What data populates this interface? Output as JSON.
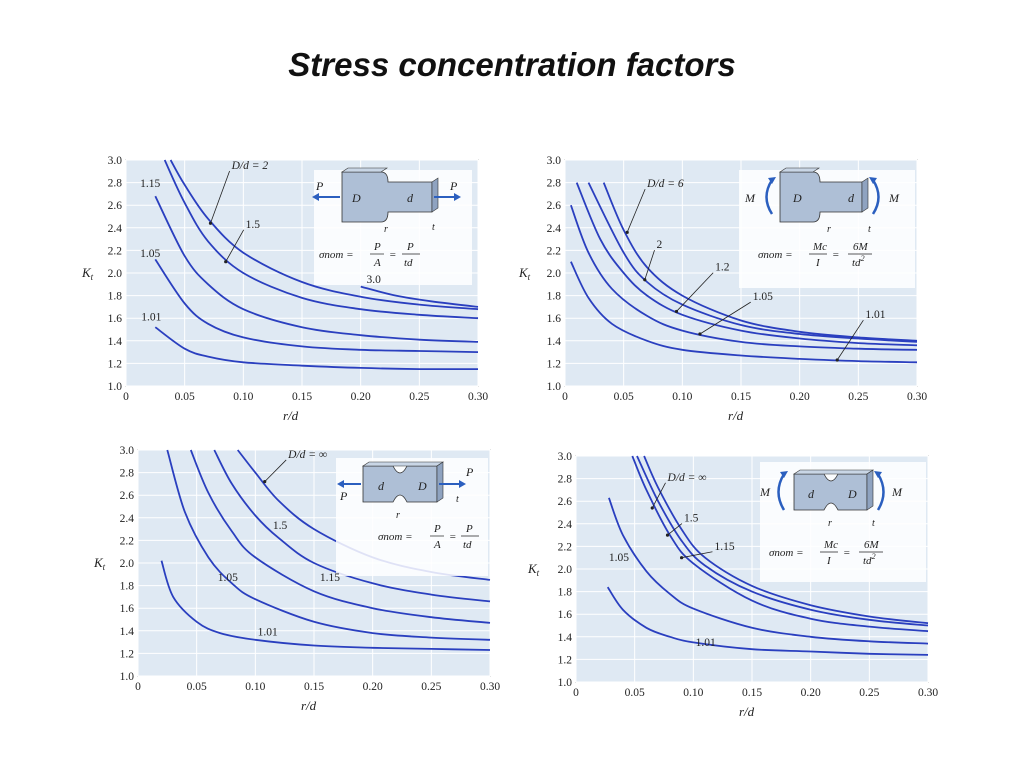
{
  "title": "Stress concentration factors",
  "chart_data": [
    {
      "type": "line",
      "id": "tl",
      "xlabel": "r/d",
      "ylabel": "Kt",
      "xlim": [
        0,
        0.3
      ],
      "ylim": [
        1.0,
        3.0
      ],
      "x_ticks": [
        "0",
        "0.05",
        "0.10",
        "0.15",
        "0.20",
        "0.25",
        "0.30"
      ],
      "y_ticks": [
        "1.0",
        "1.2",
        "1.4",
        "1.6",
        "1.8",
        "2.0",
        "2.2",
        "2.4",
        "2.6",
        "2.8",
        "3.0"
      ],
      "grid": true,
      "legend_label": "D/d = 2",
      "series": [
        {
          "name": "3.0",
          "x": [
            0.2,
            0.23,
            0.26,
            0.3
          ],
          "y": [
            1.88,
            1.8,
            1.75,
            1.7
          ]
        },
        {
          "name": "D/d = 2",
          "x": [
            0.038,
            0.05,
            0.07,
            0.1,
            0.15,
            0.2,
            0.25,
            0.3
          ],
          "y": [
            3.0,
            2.78,
            2.48,
            2.18,
            1.92,
            1.79,
            1.72,
            1.68
          ]
        },
        {
          "name": "1.5",
          "x": [
            0.033,
            0.05,
            0.07,
            0.1,
            0.15,
            0.2,
            0.25,
            0.3
          ],
          "y": [
            3.0,
            2.62,
            2.28,
            2.0,
            1.78,
            1.68,
            1.63,
            1.6
          ]
        },
        {
          "name": "1.15",
          "x": [
            0.025,
            0.05,
            0.07,
            0.1,
            0.15,
            0.2,
            0.25,
            0.3
          ],
          "y": [
            2.68,
            2.15,
            1.9,
            1.68,
            1.52,
            1.45,
            1.41,
            1.39
          ]
        },
        {
          "name": "1.05",
          "x": [
            0.025,
            0.05,
            0.07,
            0.1,
            0.15,
            0.2,
            0.25,
            0.3
          ],
          "y": [
            2.12,
            1.73,
            1.55,
            1.43,
            1.35,
            1.32,
            1.31,
            1.3
          ]
        },
        {
          "name": "1.01",
          "x": [
            0.025,
            0.05,
            0.07,
            0.1,
            0.15,
            0.2,
            0.25,
            0.3
          ],
          "y": [
            1.52,
            1.33,
            1.26,
            1.21,
            1.18,
            1.16,
            1.15,
            1.15
          ]
        }
      ],
      "labels": [
        "D/d = 2",
        "1.5",
        "1.15",
        "1.05",
        "1.01",
        "3.0"
      ],
      "formula": {
        "lhs": "σnom =",
        "f1_num": "P",
        "f1_den": "A",
        "eq": "=",
        "f2_num": "P",
        "f2_den": "td"
      },
      "inset": {
        "load": "P",
        "D": "D",
        "d": "d",
        "r": "r",
        "t": "t"
      }
    },
    {
      "type": "line",
      "id": "tr",
      "xlabel": "r/d",
      "ylabel": "Kt",
      "xlim": [
        0,
        0.3
      ],
      "ylim": [
        1.0,
        3.0
      ],
      "x_ticks": [
        "0",
        "0.05",
        "0.10",
        "0.15",
        "0.20",
        "0.25",
        "0.30"
      ],
      "y_ticks": [
        "1.0",
        "1.2",
        "1.4",
        "1.6",
        "1.8",
        "2.0",
        "2.2",
        "2.4",
        "2.6",
        "2.8",
        "3.0"
      ],
      "grid": true,
      "series": [
        {
          "name": "D/d = 6",
          "x": [
            0.033,
            0.05,
            0.07,
            0.1,
            0.15,
            0.2,
            0.25,
            0.3
          ],
          "y": [
            2.8,
            2.38,
            2.05,
            1.8,
            1.58,
            1.48,
            1.43,
            1.4
          ]
        },
        {
          "name": "2",
          "x": [
            0.02,
            0.05,
            0.07,
            0.1,
            0.15,
            0.2,
            0.25,
            0.3
          ],
          "y": [
            2.8,
            2.18,
            1.92,
            1.72,
            1.54,
            1.46,
            1.42,
            1.39
          ]
        },
        {
          "name": "1.2",
          "x": [
            0.01,
            0.03,
            0.05,
            0.07,
            0.1,
            0.15,
            0.2,
            0.25,
            0.3
          ],
          "y": [
            2.8,
            2.3,
            2.0,
            1.8,
            1.63,
            1.49,
            1.42,
            1.38,
            1.36
          ]
        },
        {
          "name": "1.05",
          "x": [
            0.005,
            0.02,
            0.04,
            0.07,
            0.1,
            0.15,
            0.2,
            0.25,
            0.3
          ],
          "y": [
            2.6,
            2.18,
            1.86,
            1.62,
            1.49,
            1.39,
            1.35,
            1.33,
            1.32
          ]
        },
        {
          "name": "1.01",
          "x": [
            0.005,
            0.02,
            0.04,
            0.07,
            0.1,
            0.15,
            0.2,
            0.25,
            0.3
          ],
          "y": [
            2.1,
            1.78,
            1.55,
            1.4,
            1.32,
            1.27,
            1.24,
            1.22,
            1.21
          ]
        }
      ],
      "labels": [
        "D/d = 6",
        "2",
        "1.2",
        "1.05",
        "1.01"
      ],
      "formula": {
        "lhs": "σnom =",
        "f1_num": "Mc",
        "f1_den": "I",
        "eq": "=",
        "f2_num": "6M",
        "f2_den": "td2"
      },
      "inset": {
        "load": "M",
        "D": "D",
        "d": "d",
        "r": "r",
        "t": "t"
      }
    },
    {
      "type": "line",
      "id": "bl",
      "xlabel": "r/d",
      "ylabel": "Kt",
      "xlim": [
        0,
        0.3
      ],
      "ylim": [
        1.0,
        3.0
      ],
      "x_ticks": [
        "0",
        "0.05",
        "0.10",
        "0.15",
        "0.20",
        "0.25",
        "0.30"
      ],
      "y_ticks": [
        "1.0",
        "1.2",
        "1.4",
        "1.6",
        "1.8",
        "2.0",
        "2.2",
        "2.4",
        "2.6",
        "2.8",
        "3.0"
      ],
      "grid": true,
      "series": [
        {
          "name": "D/d = ∞",
          "x": [
            0.085,
            0.1,
            0.12,
            0.15,
            0.2,
            0.25,
            0.3
          ],
          "y": [
            3.0,
            2.8,
            2.55,
            2.3,
            2.05,
            1.92,
            1.85
          ]
        },
        {
          "name": "1.5",
          "x": [
            0.065,
            0.08,
            0.1,
            0.12,
            0.15,
            0.2,
            0.25,
            0.3
          ],
          "y": [
            3.0,
            2.7,
            2.42,
            2.22,
            2.0,
            1.82,
            1.72,
            1.66
          ]
        },
        {
          "name": "1.15",
          "x": [
            0.045,
            0.06,
            0.08,
            0.1,
            0.15,
            0.2,
            0.25,
            0.3
          ],
          "y": [
            3.0,
            2.62,
            2.28,
            2.05,
            1.75,
            1.6,
            1.52,
            1.47
          ]
        },
        {
          "name": "1.05",
          "x": [
            0.025,
            0.04,
            0.06,
            0.08,
            0.1,
            0.15,
            0.2,
            0.25,
            0.3
          ],
          "y": [
            3.0,
            2.45,
            2.05,
            1.82,
            1.68,
            1.48,
            1.38,
            1.34,
            1.32
          ]
        },
        {
          "name": "1.01",
          "x": [
            0.02,
            0.03,
            0.05,
            0.07,
            0.1,
            0.15,
            0.2,
            0.25,
            0.3
          ],
          "y": [
            2.02,
            1.7,
            1.48,
            1.38,
            1.32,
            1.27,
            1.25,
            1.24,
            1.23
          ]
        }
      ],
      "labels": [
        "D/d = ∞",
        "1.5",
        "1.15",
        "1.05",
        "1.01"
      ],
      "formula": {
        "lhs": "σnom =",
        "f1_num": "P",
        "f1_den": "A",
        "eq": "=",
        "f2_num": "P",
        "f2_den": "td"
      },
      "inset": {
        "load": "P",
        "D": "D",
        "d": "d",
        "r": "r",
        "t": "t"
      }
    },
    {
      "type": "line",
      "id": "br",
      "xlabel": "r/d",
      "ylabel": "Kt",
      "xlim": [
        0,
        0.3
      ],
      "ylim": [
        1.0,
        3.0
      ],
      "x_ticks": [
        "0",
        "0.05",
        "0.10",
        "0.15",
        "0.20",
        "0.25",
        "0.30"
      ],
      "y_ticks": [
        "1.0",
        "1.2",
        "1.4",
        "1.6",
        "1.8",
        "2.0",
        "2.2",
        "2.4",
        "2.6",
        "2.8",
        "3.0"
      ],
      "grid": true,
      "series": [
        {
          "name": "D/d = ∞",
          "x": [
            0.058,
            0.07,
            0.09,
            0.11,
            0.15,
            0.2,
            0.25,
            0.3
          ],
          "y": [
            3.0,
            2.72,
            2.35,
            2.1,
            1.85,
            1.68,
            1.58,
            1.52
          ]
        },
        {
          "name": "1.5",
          "x": [
            0.052,
            0.07,
            0.09,
            0.11,
            0.15,
            0.2,
            0.25,
            0.3
          ],
          "y": [
            3.0,
            2.6,
            2.25,
            2.03,
            1.8,
            1.64,
            1.55,
            1.5
          ]
        },
        {
          "name": "1.15",
          "x": [
            0.048,
            0.06,
            0.08,
            0.1,
            0.15,
            0.2,
            0.25,
            0.3
          ],
          "y": [
            3.0,
            2.7,
            2.3,
            2.05,
            1.72,
            1.56,
            1.49,
            1.45
          ]
        },
        {
          "name": "1.05",
          "x": [
            0.028,
            0.04,
            0.06,
            0.08,
            0.1,
            0.15,
            0.2,
            0.25,
            0.3
          ],
          "y": [
            2.63,
            2.3,
            1.98,
            1.78,
            1.65,
            1.48,
            1.4,
            1.36,
            1.34
          ]
        },
        {
          "name": "1.01",
          "x": [
            0.027,
            0.04,
            0.06,
            0.08,
            0.1,
            0.15,
            0.2,
            0.25,
            0.3
          ],
          "y": [
            1.84,
            1.64,
            1.48,
            1.4,
            1.35,
            1.29,
            1.27,
            1.25,
            1.24
          ]
        }
      ],
      "labels": [
        "D/d = ∞",
        "1.5",
        "1.15",
        "1.05",
        "1.01"
      ],
      "formula": {
        "lhs": "σnom =",
        "f1_num": "Mc",
        "f1_den": "I",
        "eq": "=",
        "f2_num": "6M",
        "f2_den": "td2"
      },
      "inset": {
        "load": "M",
        "D": "D",
        "d": "d",
        "r": "r",
        "t": "t"
      }
    }
  ],
  "colors": {
    "curve": "#2a3fbf",
    "plot_bg": "#dfe9f3",
    "grid": "#ffffff",
    "inset_bg": "#ffffff",
    "specimen": "#aebfd6",
    "arrow": "#2b5fbf"
  }
}
